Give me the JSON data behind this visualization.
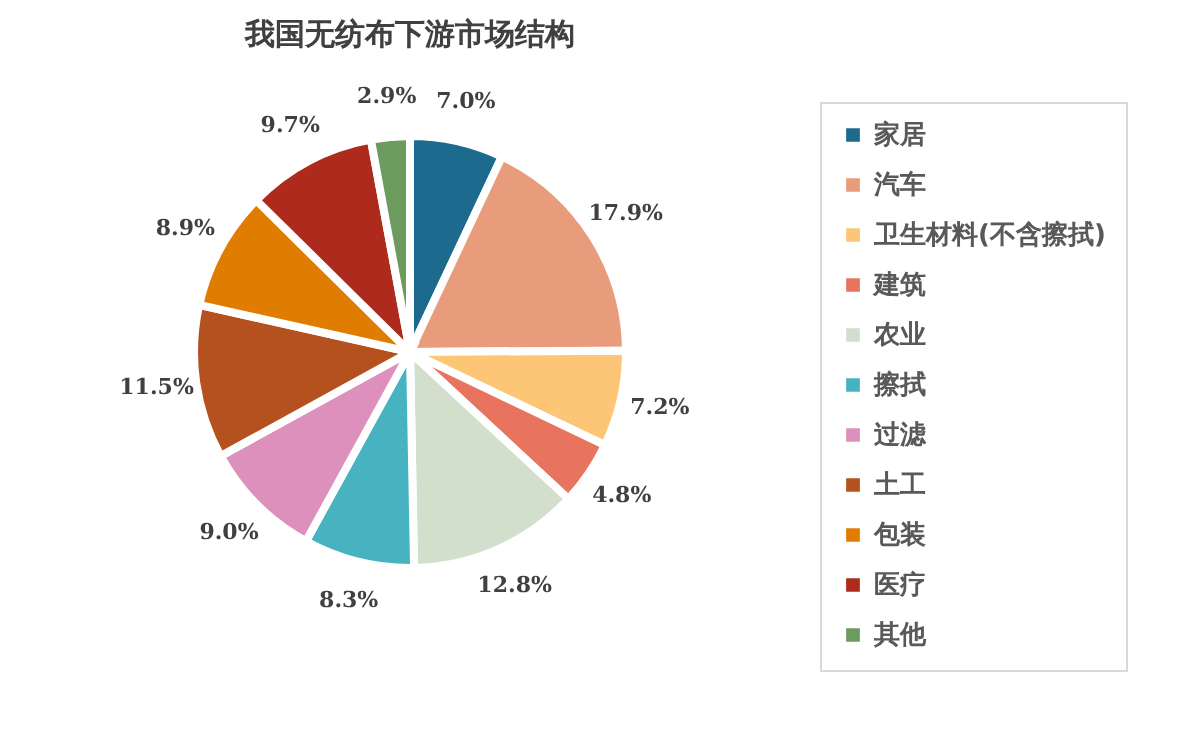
{
  "chart_data": {
    "type": "pie",
    "title": "我国无纺布下游市场结构",
    "categories": [
      "家居",
      "汽车",
      "卫生材料(不含擦拭)",
      "建筑",
      "农业",
      "擦拭",
      "过滤",
      "土工",
      "包装",
      "医疗",
      "其他"
    ],
    "values": [
      7.0,
      17.9,
      7.2,
      4.8,
      12.8,
      8.3,
      9.0,
      11.5,
      8.9,
      9.7,
      2.9
    ],
    "value_labels": [
      "7.0%",
      "17.9%",
      "7.2%",
      "4.8%",
      "12.8%",
      "8.3%",
      "9.0%",
      "11.5%",
      "8.9%",
      "9.7%",
      "2.9%"
    ],
    "colors": [
      "#1c6a8e",
      "#e89c7c",
      "#fdc676",
      "#e8735f",
      "#d2dfcd",
      "#48b3c0",
      "#dc90bb",
      "#b5501f",
      "#e07c00",
      "#ad2a1c",
      "#6b9b5f"
    ],
    "legend": "right"
  }
}
